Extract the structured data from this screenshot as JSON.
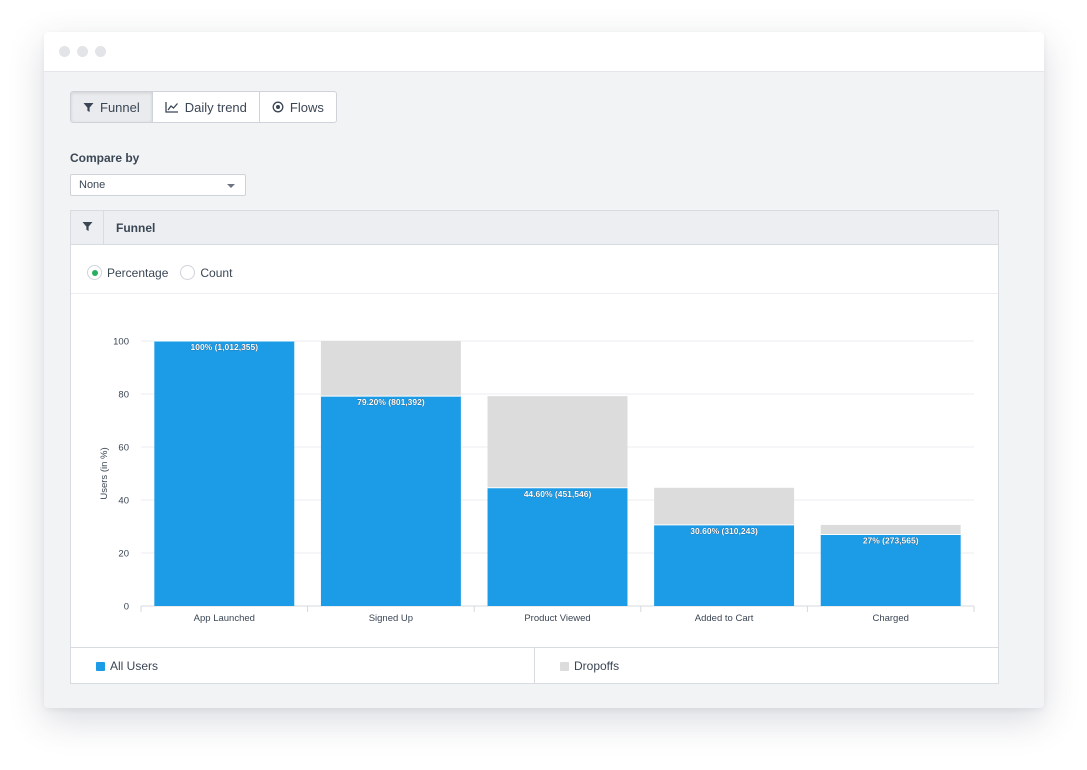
{
  "window": {
    "colors": {
      "dot": "#e3e4e7"
    }
  },
  "tabs": [
    {
      "label": "Funnel",
      "icon": "filter-icon",
      "active": true
    },
    {
      "label": "Daily trend",
      "icon": "line-chart-icon",
      "active": false
    },
    {
      "label": "Flows",
      "icon": "target-icon",
      "active": false
    }
  ],
  "compare": {
    "label": "Compare by",
    "selected": "None"
  },
  "panel": {
    "title": "Funnel",
    "icon": "filter-icon"
  },
  "view_mode": {
    "options": [
      "Percentage",
      "Count"
    ],
    "selected": "Percentage"
  },
  "legend": {
    "all_users": {
      "label": "All Users",
      "color": "#1c9be6"
    },
    "dropoffs": {
      "label": "Dropoffs",
      "color": "#dcdcdc"
    }
  },
  "chart_data": {
    "type": "bar",
    "stacked": true,
    "categories": [
      "App Launched",
      "Signed Up",
      "Product Viewed",
      "Added to Cart",
      "Charged"
    ],
    "series": [
      {
        "name": "All Users",
        "values": [
          100,
          79.2,
          44.6,
          30.6,
          27
        ],
        "color": "#1c9be6"
      },
      {
        "name": "Dropoffs",
        "values": [
          0,
          20.8,
          34.6,
          14.0,
          3.6
        ],
        "color": "#dcdcdc"
      }
    ],
    "data_labels": [
      "100% (1,012,355)",
      "79.20% (801,392)",
      "44.60% (451,546)",
      "30.60% (310,243)",
      "27% (273,565)"
    ],
    "ylabel": "Users (in %)",
    "ylim": [
      0,
      100
    ],
    "yticks": [
      0,
      20,
      40,
      60,
      80,
      100
    ],
    "grid": true,
    "legend_position": "bottom"
  }
}
